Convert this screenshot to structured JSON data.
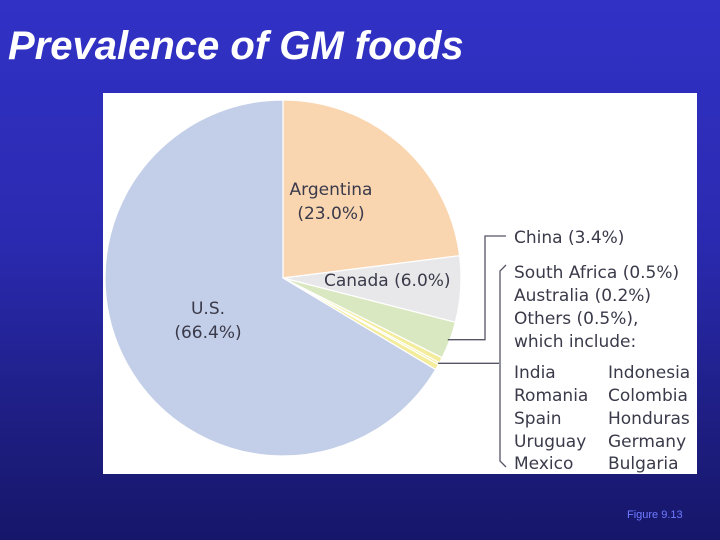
{
  "slide": {
    "title": "Prevalence of GM foods",
    "caption": "Figure 9.13"
  },
  "chart_data": {
    "type": "pie",
    "title": "",
    "slices": [
      {
        "label": "Argentina",
        "value": 23.0,
        "value_text": "(23.0%)",
        "color": "#f9d5b0"
      },
      {
        "label": "Canada (6.0%)",
        "value": 6.0,
        "color": "#e8e8ea"
      },
      {
        "label": "China (3.4%)",
        "value": 3.4,
        "color": "#d9e8c0"
      },
      {
        "label": "South Africa (0.5%)",
        "value": 0.5,
        "color": "#f3ec9a"
      },
      {
        "label": "Australia (0.2%)",
        "value": 0.2,
        "color": "#f3ec9a"
      },
      {
        "label": "Others (0.5%),",
        "value": 0.5,
        "color": "#f3ec9a"
      },
      {
        "label": "U.S.",
        "value": 66.4,
        "value_text": "(66.4%)",
        "color": "#c3cfe8"
      }
    ],
    "others_note": "which include:",
    "others_countries": [
      [
        "India",
        "Indonesia"
      ],
      [
        "Romania",
        "Colombia"
      ],
      [
        "Spain",
        "Honduras"
      ],
      [
        "Uruguay",
        "Germany"
      ],
      [
        "Mexico",
        "Bulgaria"
      ]
    ],
    "edge_color": "#ffffff",
    "leader_color": "#555566"
  }
}
